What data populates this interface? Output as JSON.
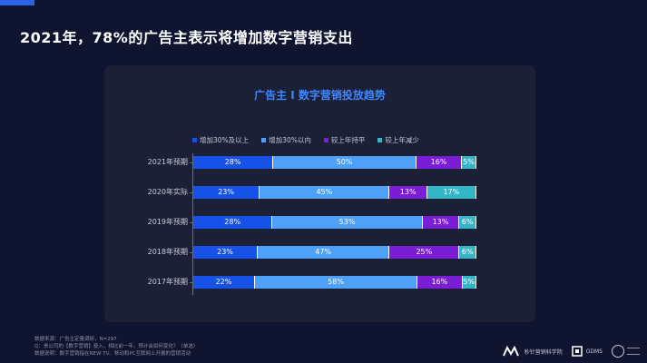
{
  "header": {
    "title": "2021年，78%的广告主表示将增加数字营销支出"
  },
  "chart_data": {
    "type": "bar",
    "orientation": "horizontal",
    "stacked": true,
    "title": "广告主 I 数字营销投放趋势",
    "categories": [
      "2021年预期",
      "2020年实际",
      "2019年预期",
      "2018年预期",
      "2017年预期"
    ],
    "series": [
      {
        "name": "增加30%及以上",
        "color": "#1652e8",
        "values": [
          28,
          23,
          28,
          23,
          22
        ],
        "labels": [
          "28%",
          "23%",
          "28%",
          "23%",
          "22%"
        ]
      },
      {
        "name": "增加30%以内",
        "color": "#4ea1f7",
        "values": [
          50,
          45,
          53,
          47,
          58
        ],
        "labels": [
          "50%",
          "45%",
          "53%",
          "47%",
          "58%"
        ]
      },
      {
        "name": "较上年持平",
        "color": "#7a1ed6",
        "values": [
          16,
          13,
          13,
          25,
          16
        ],
        "labels": [
          "16%",
          "13%",
          "13%",
          "25%",
          "16%"
        ]
      },
      {
        "name": "较上年减少",
        "color": "#35b6c6",
        "values": [
          5,
          17,
          6,
          6,
          5
        ],
        "labels": [
          "5%",
          "17%",
          "6%",
          "6%",
          "5%"
        ]
      }
    ],
    "legend_position": "top",
    "grid": false
  },
  "footnotes": [
    "数据来源：广告主定量调研，N=297",
    "Q：贵公司的【数字营销】投入，相比前一年，预计会如何变化？（单选）",
    "数据说明：数字营销指在NEW TV、移动和PC互联网上开展的营销活动"
  ],
  "logos": {
    "org1": "秒针营销科学院",
    "org2": "GDMS"
  }
}
